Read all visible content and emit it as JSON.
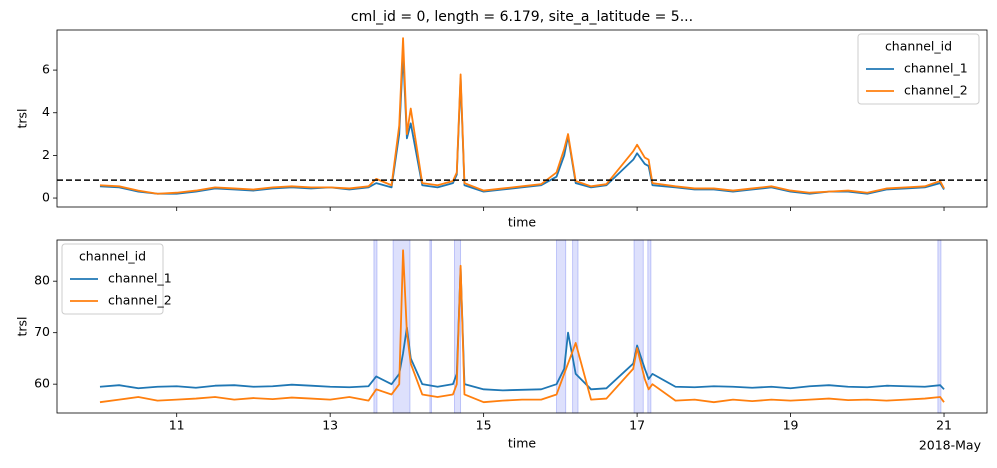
{
  "chart_data": [
    {
      "type": "line",
      "title": "cml_id = 0, length = 6.179, site_a_latitude = 5...",
      "xlabel": "time",
      "ylabel": "trsl",
      "x": [
        10.0,
        10.25,
        10.5,
        10.75,
        11.0,
        11.25,
        11.5,
        11.75,
        12.0,
        12.25,
        12.5,
        12.75,
        13.0,
        13.25,
        13.5,
        13.6,
        13.8,
        13.9,
        13.95,
        14.0,
        14.05,
        14.2,
        14.4,
        14.6,
        14.65,
        14.7,
        14.75,
        15.0,
        15.25,
        15.5,
        15.75,
        15.95,
        16.05,
        16.1,
        16.2,
        16.4,
        16.6,
        16.95,
        17.0,
        17.1,
        17.15,
        17.2,
        17.5,
        17.75,
        18.0,
        18.25,
        18.5,
        18.75,
        19.0,
        19.25,
        19.5,
        19.75,
        20.0,
        20.25,
        20.5,
        20.75,
        20.95,
        21.0
      ],
      "series": [
        {
          "name": "channel_1",
          "color": "#1f77b4",
          "values": [
            0.55,
            0.5,
            0.3,
            0.2,
            0.2,
            0.3,
            0.45,
            0.4,
            0.35,
            0.45,
            0.5,
            0.45,
            0.5,
            0.4,
            0.5,
            0.7,
            0.5,
            3.0,
            6.8,
            2.8,
            3.5,
            0.6,
            0.5,
            0.7,
            1.1,
            5.6,
            0.6,
            0.3,
            0.4,
            0.5,
            0.6,
            1.0,
            2.0,
            2.9,
            0.7,
            0.5,
            0.6,
            1.8,
            2.1,
            1.6,
            1.5,
            0.6,
            0.5,
            0.4,
            0.4,
            0.3,
            0.4,
            0.5,
            0.3,
            0.2,
            0.3,
            0.3,
            0.2,
            0.4,
            0.45,
            0.5,
            0.7,
            0.4
          ]
        },
        {
          "name": "channel_2",
          "color": "#ff7f0e",
          "values": [
            0.6,
            0.55,
            0.35,
            0.2,
            0.25,
            0.35,
            0.5,
            0.45,
            0.4,
            0.5,
            0.55,
            0.5,
            0.5,
            0.45,
            0.55,
            0.9,
            0.6,
            3.4,
            7.5,
            3.0,
            4.2,
            0.7,
            0.6,
            0.8,
            1.2,
            5.8,
            0.7,
            0.35,
            0.45,
            0.55,
            0.65,
            1.2,
            2.3,
            3.0,
            0.8,
            0.55,
            0.65,
            2.2,
            2.5,
            1.9,
            1.8,
            0.7,
            0.55,
            0.45,
            0.45,
            0.35,
            0.45,
            0.55,
            0.35,
            0.25,
            0.3,
            0.35,
            0.25,
            0.45,
            0.5,
            0.55,
            0.8,
            0.45
          ]
        }
      ],
      "hline": 0.84,
      "xlim": [
        9.44,
        21.56
      ],
      "xticks": [
        11,
        13,
        15,
        17,
        19,
        21
      ],
      "show_xtick_labels": false,
      "ylim": [
        -0.42,
        7.88
      ],
      "yticks": [
        0,
        2,
        4,
        6
      ],
      "legend_title": "channel_id",
      "legend_loc": "upper right"
    },
    {
      "type": "line",
      "xlabel": "time",
      "ylabel": "trsl",
      "x_offset_label": "2018-May",
      "x": [
        10.0,
        10.25,
        10.5,
        10.75,
        11.0,
        11.25,
        11.5,
        11.75,
        12.0,
        12.25,
        12.5,
        12.75,
        13.0,
        13.25,
        13.5,
        13.6,
        13.8,
        13.9,
        13.95,
        14.0,
        14.05,
        14.2,
        14.4,
        14.6,
        14.65,
        14.7,
        14.75,
        15.0,
        15.25,
        15.5,
        15.75,
        15.95,
        16.05,
        16.1,
        16.2,
        16.4,
        16.6,
        16.95,
        17.0,
        17.1,
        17.15,
        17.2,
        17.5,
        17.75,
        18.0,
        18.25,
        18.5,
        18.75,
        19.0,
        19.25,
        19.5,
        19.75,
        20.0,
        20.25,
        20.5,
        20.75,
        20.95,
        21.0
      ],
      "series": [
        {
          "name": "channel_1",
          "color": "#1f77b4",
          "values": [
            59.5,
            59.8,
            59.2,
            59.5,
            59.6,
            59.3,
            59.7,
            59.8,
            59.5,
            59.6,
            59.9,
            59.7,
            59.5,
            59.4,
            59.6,
            61.5,
            60,
            62,
            66,
            71,
            65,
            60,
            59.5,
            60,
            62,
            82.5,
            60,
            59,
            58.8,
            58.9,
            59,
            60,
            63,
            70,
            62,
            59,
            59.2,
            64,
            67.5,
            63,
            61,
            62,
            59.5,
            59.4,
            59.6,
            59.5,
            59.3,
            59.5,
            59.2,
            59.6,
            59.8,
            59.5,
            59.4,
            59.7,
            59.6,
            59.5,
            59.8,
            59.0
          ]
        },
        {
          "name": "channel_2",
          "color": "#ff7f0e",
          "values": [
            56.5,
            57,
            57.5,
            56.8,
            57,
            57.2,
            57.5,
            57,
            57.3,
            57.1,
            57.4,
            57.2,
            57,
            57.5,
            56.8,
            59,
            58,
            60,
            86,
            70,
            64,
            58,
            57.5,
            58,
            60,
            83,
            58,
            56.5,
            56.8,
            57,
            57,
            58,
            62,
            64,
            68,
            57,
            57.2,
            63,
            67,
            61,
            59,
            60,
            56.8,
            57,
            56.5,
            57,
            56.7,
            57,
            56.8,
            57,
            57.2,
            56.9,
            57,
            56.8,
            57,
            57.2,
            57.5,
            56.5
          ]
        }
      ],
      "spans": [
        [
          13.57,
          13.61
        ],
        [
          13.82,
          14.04
        ],
        [
          14.3,
          14.32
        ],
        [
          14.62,
          14.7
        ],
        [
          15.95,
          16.07
        ],
        [
          16.16,
          16.23
        ],
        [
          16.96,
          17.08
        ],
        [
          17.14,
          17.18
        ],
        [
          20.92,
          20.96
        ]
      ],
      "span_color": "#4455ee",
      "xlim": [
        9.44,
        21.56
      ],
      "xticks": [
        11,
        13,
        15,
        17,
        19,
        21
      ],
      "show_xtick_labels": true,
      "ylim": [
        54.4,
        88
      ],
      "yticks": [
        60,
        70,
        80
      ],
      "legend_title": "channel_id",
      "legend_loc": "upper left"
    }
  ]
}
